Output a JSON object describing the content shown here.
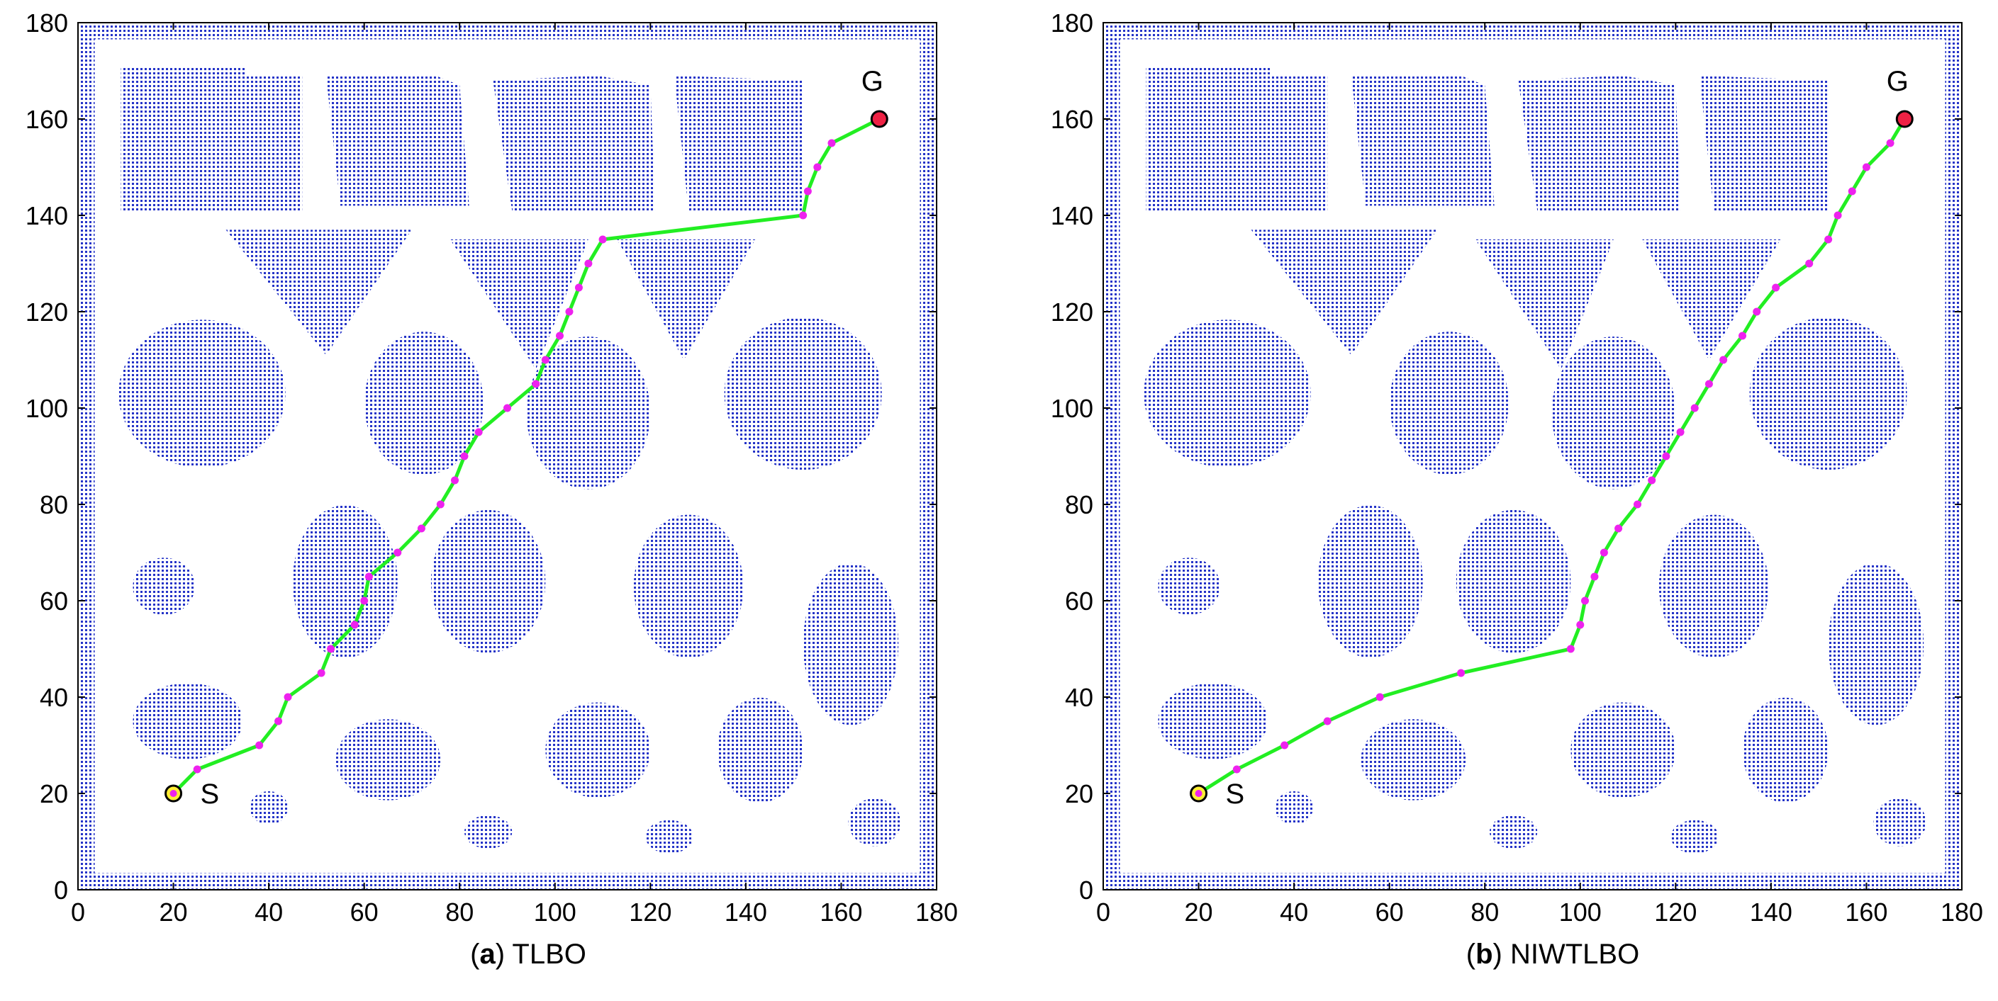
{
  "chart_data": [
    {
      "type": "scatter",
      "panel_letter": "a",
      "title": "TLBO",
      "xlim": [
        0,
        180
      ],
      "ylim": [
        0,
        180
      ],
      "xticks": [
        0,
        20,
        40,
        60,
        80,
        100,
        120,
        140,
        160,
        180
      ],
      "yticks": [
        0,
        20,
        40,
        60,
        80,
        100,
        120,
        140,
        160,
        180
      ],
      "start": {
        "label": "S",
        "x": 20,
        "y": 20
      },
      "goal": {
        "label": "G",
        "x": 168,
        "y": 160
      },
      "path": [
        [
          20,
          20
        ],
        [
          25,
          25
        ],
        [
          38,
          30
        ],
        [
          42,
          35
        ],
        [
          44,
          40
        ],
        [
          51,
          45
        ],
        [
          53,
          50
        ],
        [
          58,
          55
        ],
        [
          60,
          60
        ],
        [
          61,
          65
        ],
        [
          67,
          70
        ],
        [
          72,
          75
        ],
        [
          76,
          80
        ],
        [
          79,
          85
        ],
        [
          81,
          90
        ],
        [
          84,
          95
        ],
        [
          90,
          100
        ],
        [
          96,
          105
        ],
        [
          98,
          110
        ],
        [
          101,
          115
        ],
        [
          103,
          120
        ],
        [
          105,
          125
        ],
        [
          107,
          130
        ],
        [
          110,
          135
        ],
        [
          152,
          140
        ],
        [
          153,
          145
        ],
        [
          155,
          150
        ],
        [
          158,
          155
        ],
        [
          168,
          160
        ]
      ]
    },
    {
      "type": "scatter",
      "panel_letter": "b",
      "title": "NIWTLBO",
      "xlim": [
        0,
        180
      ],
      "ylim": [
        0,
        180
      ],
      "xticks": [
        0,
        20,
        40,
        60,
        80,
        100,
        120,
        140,
        160,
        180
      ],
      "yticks": [
        0,
        20,
        40,
        60,
        80,
        100,
        120,
        140,
        160,
        180
      ],
      "start": {
        "label": "S",
        "x": 20,
        "y": 20
      },
      "goal": {
        "label": "G",
        "x": 168,
        "y": 160
      },
      "path": [
        [
          20,
          20
        ],
        [
          28,
          25
        ],
        [
          38,
          30
        ],
        [
          47,
          35
        ],
        [
          58,
          40
        ],
        [
          75,
          45
        ],
        [
          98,
          50
        ],
        [
          100,
          55
        ],
        [
          101,
          60
        ],
        [
          103,
          65
        ],
        [
          105,
          70
        ],
        [
          108,
          75
        ],
        [
          112,
          80
        ],
        [
          115,
          85
        ],
        [
          118,
          90
        ],
        [
          121,
          95
        ],
        [
          124,
          100
        ],
        [
          127,
          105
        ],
        [
          130,
          110
        ],
        [
          134,
          115
        ],
        [
          137,
          120
        ],
        [
          141,
          125
        ],
        [
          148,
          130
        ],
        [
          152,
          135
        ],
        [
          154,
          140
        ],
        [
          157,
          145
        ],
        [
          160,
          150
        ],
        [
          165,
          155
        ],
        [
          168,
          160
        ]
      ]
    }
  ],
  "obstacles": [
    {
      "kind": "poly",
      "pts": [
        [
          9,
          171
        ],
        [
          35,
          171
        ],
        [
          35,
          169
        ],
        [
          47,
          169
        ],
        [
          47,
          141
        ],
        [
          9,
          141
        ]
      ]
    },
    {
      "kind": "poly",
      "pts": [
        [
          52,
          169
        ],
        [
          75,
          169
        ],
        [
          80,
          167
        ],
        [
          82,
          142
        ],
        [
          55,
          142
        ]
      ]
    },
    {
      "kind": "poly",
      "pts": [
        [
          87,
          168
        ],
        [
          109,
          169
        ],
        [
          120,
          167
        ],
        [
          121,
          141
        ],
        [
          91,
          141
        ]
      ]
    },
    {
      "kind": "poly",
      "pts": [
        [
          125,
          169
        ],
        [
          152,
          168
        ],
        [
          152,
          141
        ],
        [
          128,
          141
        ]
      ]
    },
    {
      "kind": "poly",
      "pts": [
        [
          31,
          137
        ],
        [
          70,
          137
        ],
        [
          52,
          111
        ]
      ]
    },
    {
      "kind": "poly",
      "pts": [
        [
          78,
          135
        ],
        [
          107,
          135
        ],
        [
          96,
          108
        ]
      ]
    },
    {
      "kind": "poly",
      "pts": [
        [
          113,
          135
        ],
        [
          142,
          135
        ],
        [
          127,
          110
        ]
      ]
    },
    {
      "kind": "ellipse",
      "cx": 26,
      "cy": 103,
      "rx": 17.5,
      "ry": 15.5
    },
    {
      "kind": "ellipse",
      "cx": 72.5,
      "cy": 101,
      "rx": 12.5,
      "ry": 15
    },
    {
      "kind": "ellipse",
      "cx": 107,
      "cy": 99,
      "rx": 13,
      "ry": 16
    },
    {
      "kind": "ellipse",
      "cx": 152,
      "cy": 103,
      "rx": 16.5,
      "ry": 16
    },
    {
      "kind": "ellipse",
      "cx": 56,
      "cy": 64,
      "rx": 11,
      "ry": 16
    },
    {
      "kind": "ellipse",
      "cx": 86,
      "cy": 64,
      "rx": 12,
      "ry": 15
    },
    {
      "kind": "ellipse",
      "cx": 128,
      "cy": 63,
      "rx": 11.5,
      "ry": 15
    },
    {
      "kind": "ellipse",
      "cx": 162,
      "cy": 51,
      "rx": 10,
      "ry": 17
    },
    {
      "kind": "ellipse",
      "cx": 18,
      "cy": 63,
      "rx": 6.5,
      "ry": 6
    },
    {
      "kind": "ellipse",
      "cx": 23,
      "cy": 35,
      "rx": 11.5,
      "ry": 8
    },
    {
      "kind": "ellipse",
      "cx": 65,
      "cy": 27,
      "rx": 11,
      "ry": 8.5
    },
    {
      "kind": "ellipse",
      "cx": 109,
      "cy": 29,
      "rx": 11,
      "ry": 10
    },
    {
      "kind": "ellipse",
      "cx": 143,
      "cy": 29,
      "rx": 9,
      "ry": 11
    },
    {
      "kind": "ellipse",
      "cx": 40,
      "cy": 17,
      "rx": 4,
      "ry": 3.5
    },
    {
      "kind": "ellipse",
      "cx": 86,
      "cy": 12,
      "rx": 5,
      "ry": 3.5
    },
    {
      "kind": "ellipse",
      "cx": 124,
      "cy": 11,
      "rx": 5,
      "ry": 3.5
    },
    {
      "kind": "ellipse",
      "cx": 167,
      "cy": 14,
      "rx": 5.5,
      "ry": 5
    }
  ],
  "colors": {
    "obstacle": "#2433c8",
    "path": "#22ee22",
    "waypoint": "#ee22ee",
    "start": "#ffee33",
    "goal": "#ee2244",
    "axis": "#000000"
  }
}
